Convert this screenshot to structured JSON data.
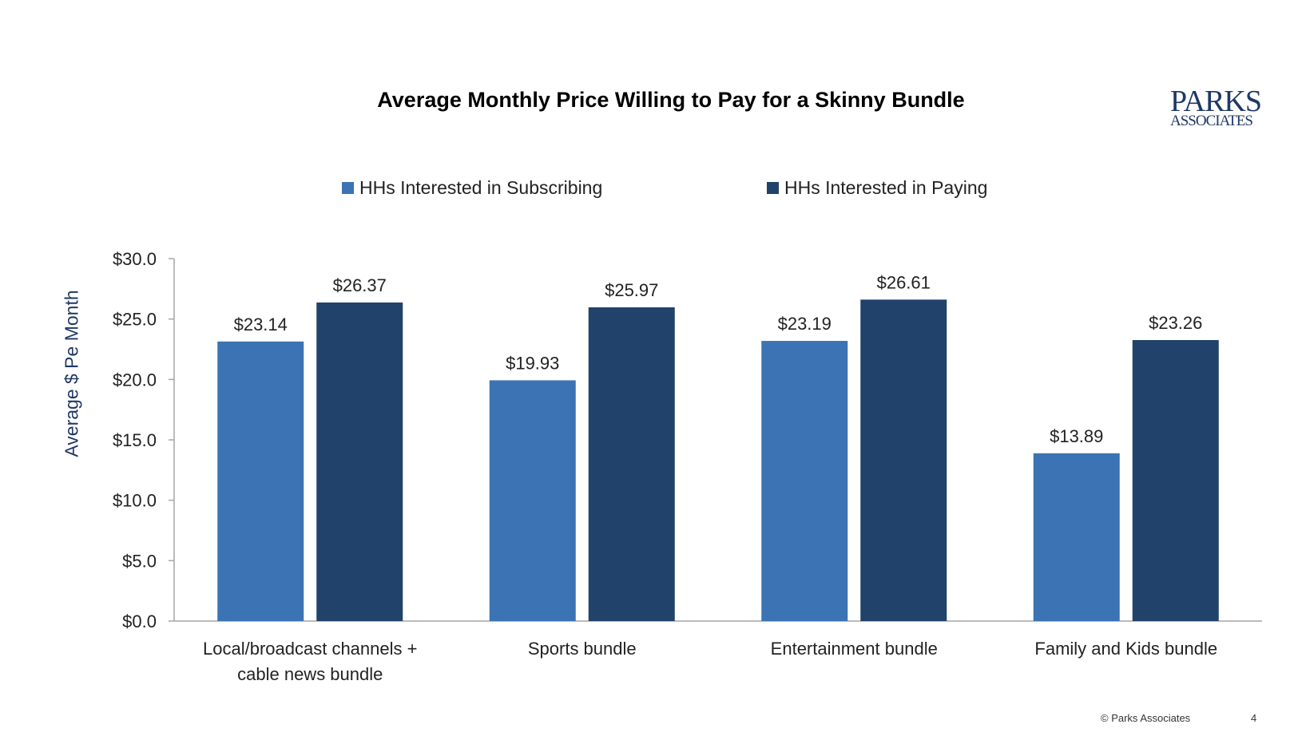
{
  "logo": {
    "line1": "PARKS",
    "line2": "ASSOCIATES"
  },
  "footer": {
    "copyright": "© Parks Associates",
    "page_number": "4"
  },
  "colors": {
    "subscribing": "#3b73b5",
    "paying": "#21426a",
    "axis": "#a6a6a6"
  },
  "chart_data": {
    "type": "bar",
    "title": "Average Monthly Price Willing to Pay for a Skinny Bundle",
    "xlabel": "",
    "ylabel": "Average $ Pe Month",
    "ylim": [
      0,
      30
    ],
    "yticks": [
      0,
      5,
      10,
      15,
      20,
      25,
      30
    ],
    "ytick_labels": [
      "$0.0",
      "$5.0",
      "$10.0",
      "$15.0",
      "$20.0",
      "$25.0",
      "$30.0"
    ],
    "grid": false,
    "legend_position": "top",
    "categories": [
      [
        "Local/broadcast channels +",
        "cable news bundle"
      ],
      [
        "Sports bundle"
      ],
      [
        "Entertainment bundle"
      ],
      [
        "Family and Kids bundle"
      ]
    ],
    "series": [
      {
        "name": "HHs Interested in Subscribing",
        "values": [
          23.14,
          19.93,
          23.19,
          13.89
        ],
        "labels": [
          "$23.14",
          "$19.93",
          "$23.19",
          "$13.89"
        ]
      },
      {
        "name": "HHs Interested in Paying",
        "values": [
          26.37,
          25.97,
          26.61,
          23.26
        ],
        "labels": [
          "$26.37",
          "$25.97",
          "$26.61",
          "$23.26"
        ]
      }
    ]
  }
}
